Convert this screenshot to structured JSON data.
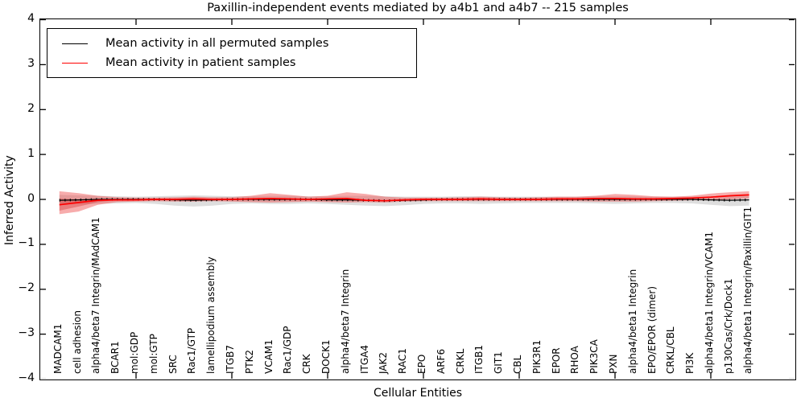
{
  "title": "Paxillin-independent events mediated by a4b1 and a4b7 -- 215 samples",
  "axes": {
    "ylabel": "Inferred Activity",
    "xlabel": "Cellular Entities",
    "yticks": [
      "4",
      "3",
      "2",
      "1",
      "0",
      "−1",
      "−2",
      "−3",
      "−4"
    ],
    "ytick_values": [
      4,
      3,
      2,
      1,
      0,
      -1,
      -2,
      -3,
      -4
    ]
  },
  "legend": {
    "items": [
      {
        "label": "Mean activity in all permuted samples",
        "color": "#000000"
      },
      {
        "label": "Mean activity in patient samples",
        "color": "#ff0000"
      }
    ]
  },
  "chart_data": {
    "type": "line",
    "title": "Paxillin-independent events mediated by a4b1 and a4b7 -- 215 samples",
    "xlabel": "Cellular Entities",
    "ylabel": "Inferred Activity",
    "ylim": [
      -4,
      4
    ],
    "grid": false,
    "legend_position": "upper left",
    "categories": [
      "MADCAM1",
      "cell adhesion",
      "alpha4/beta7 Integrin/MAdCAM1",
      "BCAR1",
      "mol:GDP",
      "mol:GTP",
      "SRC",
      "Rac1/GTP",
      "lamellipodium assembly",
      "ITGB7",
      "PTK2",
      "VCAM1",
      "Rac1/GDP",
      "CRK",
      "DOCK1",
      "alpha4/beta7 Integrin",
      "ITGA4",
      "JAK2",
      "RAC1",
      "EPO",
      "ARF6",
      "CRKL",
      "ITGB1",
      "GIT1",
      "CBL",
      "PIK3R1",
      "EPOR",
      "RHOA",
      "PIK3CA",
      "PXN",
      "alpha4/beta1 Integrin",
      "EPO/EPOR (dimer)",
      "CRKL/CBL",
      "PI3K",
      "alpha4/beta1 Integrin/VCAM1",
      "p130Cas/Crk/Dock1",
      "alpha4/beta1 Integrin/Paxillin/GIT1"
    ],
    "xtick_indices": [
      4,
      9,
      14,
      19,
      24,
      29,
      34
    ],
    "series": [
      {
        "name": "Mean activity in all permuted samples",
        "color": "#000000",
        "values": [
          -0.02,
          -0.01,
          0,
          0,
          0,
          0,
          -0.01,
          -0.02,
          -0.01,
          0,
          0,
          0,
          0,
          0,
          -0.01,
          -0.01,
          -0.02,
          -0.03,
          -0.02,
          -0.01,
          0,
          0,
          0,
          0,
          0,
          0,
          0,
          0,
          0,
          0,
          0,
          0,
          0,
          0,
          -0.01,
          -0.02,
          -0.01
        ]
      },
      {
        "name": "Mean activity in patient samples",
        "color": "#ff0000",
        "values": [
          -0.12,
          -0.07,
          -0.02,
          -0.01,
          -0.01,
          0,
          0,
          0.01,
          0,
          0,
          0.01,
          0.02,
          0.01,
          0,
          0.01,
          0.02,
          -0.02,
          -0.03,
          -0.01,
          0,
          0,
          0,
          0.01,
          0,
          0,
          0,
          0.01,
          0.01,
          0.02,
          0.02,
          0.01,
          0.01,
          0.02,
          0.03,
          0.05,
          0.08,
          0.1
        ]
      }
    ],
    "bands": [
      {
        "name": "permuted-range",
        "color": "rgba(0,0,0,0.13)",
        "upper": [
          0.1,
          0.09,
          0.08,
          0.07,
          0.06,
          0.07,
          0.08,
          0.09,
          0.08,
          0.07,
          0.07,
          0.08,
          0.08,
          0.07,
          0.07,
          0.08,
          0.08,
          0.07,
          0.06,
          0.06,
          0.06,
          0.07,
          0.07,
          0.06,
          0.06,
          0.06,
          0.06,
          0.06,
          0.07,
          0.07,
          0.07,
          0.06,
          0.06,
          0.06,
          0.07,
          0.08,
          0.08
        ],
        "lower": [
          -0.1,
          -0.1,
          -0.1,
          -0.09,
          -0.08,
          -0.1,
          -0.14,
          -0.16,
          -0.14,
          -0.1,
          -0.09,
          -0.1,
          -0.1,
          -0.09,
          -0.1,
          -0.12,
          -0.14,
          -0.15,
          -0.13,
          -0.1,
          -0.09,
          -0.09,
          -0.1,
          -0.09,
          -0.08,
          -0.08,
          -0.08,
          -0.08,
          -0.09,
          -0.1,
          -0.09,
          -0.08,
          -0.08,
          -0.09,
          -0.12,
          -0.15,
          -0.14
        ]
      },
      {
        "name": "patient-range",
        "color": "rgba(238,70,70,0.45)",
        "upper": [
          0.18,
          0.14,
          0.08,
          0.05,
          0.04,
          0.04,
          0.05,
          0.06,
          0.05,
          0.05,
          0.08,
          0.14,
          0.1,
          0.06,
          0.08,
          0.16,
          0.12,
          0.06,
          0.04,
          0.04,
          0.04,
          0.05,
          0.06,
          0.05,
          0.04,
          0.05,
          0.06,
          0.06,
          0.08,
          0.12,
          0.1,
          0.07,
          0.06,
          0.08,
          0.13,
          0.16,
          0.18
        ],
        "lower": [
          -0.33,
          -0.27,
          -0.12,
          -0.06,
          -0.05,
          -0.04,
          -0.05,
          -0.05,
          -0.04,
          -0.05,
          -0.06,
          -0.07,
          -0.06,
          -0.05,
          -0.06,
          -0.07,
          -0.06,
          -0.07,
          -0.05,
          -0.04,
          -0.04,
          -0.04,
          -0.04,
          -0.04,
          -0.04,
          -0.04,
          -0.04,
          -0.04,
          -0.05,
          -0.05,
          -0.05,
          -0.04,
          -0.03,
          -0.02,
          -0.02,
          0,
          0.02
        ]
      },
      {
        "name": "patient-range-inner",
        "color": "rgba(205,35,35,0.35)",
        "x_indices": [
          0,
          1,
          2,
          3
        ],
        "upper": [
          0.02,
          0,
          -0.005,
          -0.01
        ],
        "lower": [
          -0.25,
          -0.16,
          -0.06,
          -0.015
        ]
      }
    ]
  }
}
